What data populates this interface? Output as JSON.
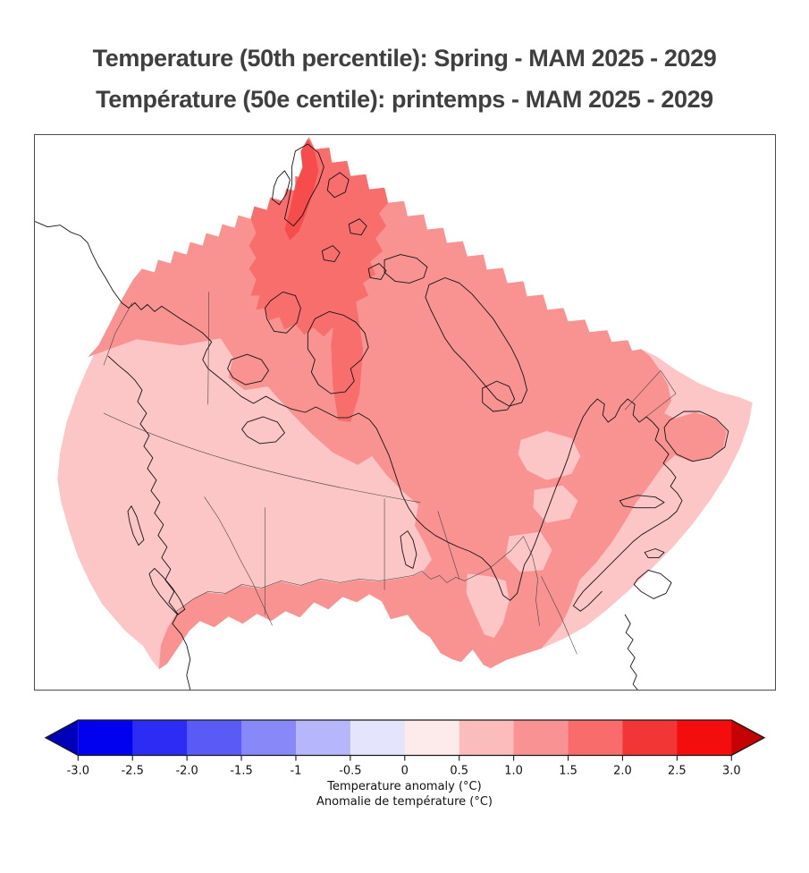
{
  "titles": {
    "line1": "Temperature (50th percentile): Spring - MAM 2025 - 2029",
    "line2": "Température (50e centile): printemps - MAM 2025 - 2029",
    "color": "#3f3f40"
  },
  "map": {
    "type": "choropleth-anomaly-map",
    "region_shown": "Canada",
    "frame_color": "#4b4b4b",
    "coastline_color": "#141414",
    "province_border_color": "#3c3c3c",
    "levels": [
      {
        "range_c": "0.5 to 1.0",
        "color": "#fbc6c5",
        "where": "southern and western Canada, outer southeast rim, patches in central Quebec"
      },
      {
        "range_c": "1.0 to 1.5",
        "color": "#f89392",
        "where": "northern mainland, Arctic islands, Hudson Bay region, Quebec, Atlantic Canada, southern Ontario strip"
      },
      {
        "range_c": "1.5 to 2.0",
        "color": "#f76e6d",
        "where": "high Arctic / Queen Elizabeth Islands"
      },
      {
        "range_c": "2.0 to 2.5",
        "color": "#f64d4c",
        "where": "narrow streaks over Ellesmere Island at map top"
      }
    ]
  },
  "colorbar": {
    "ticks": [
      "-3.0",
      "-2.5",
      "-2.0",
      "-1.5",
      "-1",
      "-0.5",
      "0",
      "0.5",
      "1.0",
      "1.5",
      "2.0",
      "2.5",
      "3.0"
    ],
    "segments": [
      "#0101f0",
      "#2c2cf5",
      "#5a5af7",
      "#8888f8",
      "#b6b6fa",
      "#e4e4fc",
      "#fdeaea",
      "#fbbcbc",
      "#f99393",
      "#f86c6c",
      "#f23535",
      "#f40d0d"
    ],
    "under_color": "#0000b8",
    "over_color": "#c40404",
    "label_en": "Temperature anomaly (°C)",
    "label_fr": "Anomalie de température (°C)"
  }
}
